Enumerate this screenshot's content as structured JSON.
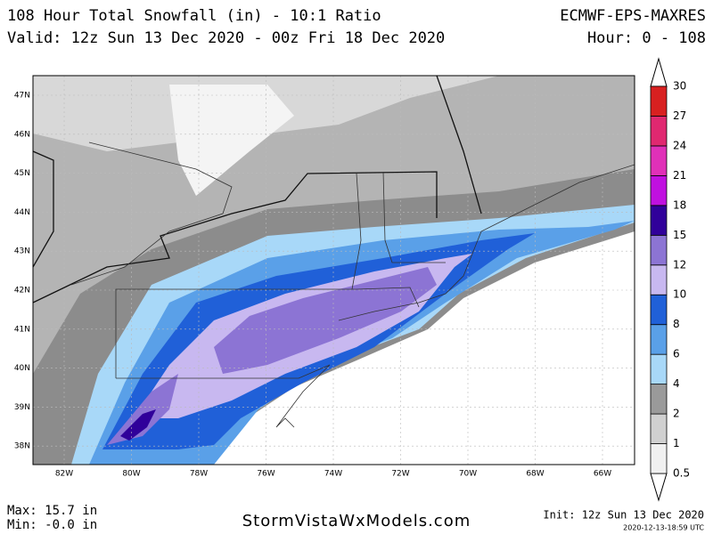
{
  "header": {
    "title": "108 Hour Total Snowfall (in) - 10:1 Ratio",
    "valid": "Valid: 12z Sun 13 Dec 2020 - 00z Fri 18 Dec 2020",
    "model": "ECMWF-EPS-MAXRES",
    "hour": "Hour: 0 - 108"
  },
  "map": {
    "latitudes": [
      "47N",
      "46N",
      "45N",
      "44N",
      "43N",
      "42N",
      "41N",
      "40N",
      "39N",
      "38N"
    ],
    "longitudes": [
      "82W",
      "80W",
      "78W",
      "76W",
      "74W",
      "72W",
      "70W",
      "68W",
      "66W"
    ]
  },
  "colorbar": {
    "levels": [
      0.5,
      1,
      2,
      4,
      6,
      8,
      10,
      12,
      15,
      18,
      21,
      24,
      27,
      30
    ],
    "colors": [
      "#f0f0f0",
      "#d0d0d0",
      "#9a9a9a",
      "#a8d8f8",
      "#5aa0e8",
      "#2060d8",
      "#c8b8f0",
      "#8c74d4",
      "#30009a",
      "#c010e0",
      "#e030b8",
      "#e02870",
      "#d82020"
    ]
  },
  "footer": {
    "max": "Max: 15.7 in",
    "min": "Min: -0.0 in",
    "site": "StormVistaWxModels.com",
    "init": "Init: 12z Sun 13 Dec 2020",
    "timestamp": "2020-12-13-18:59 UTC"
  }
}
